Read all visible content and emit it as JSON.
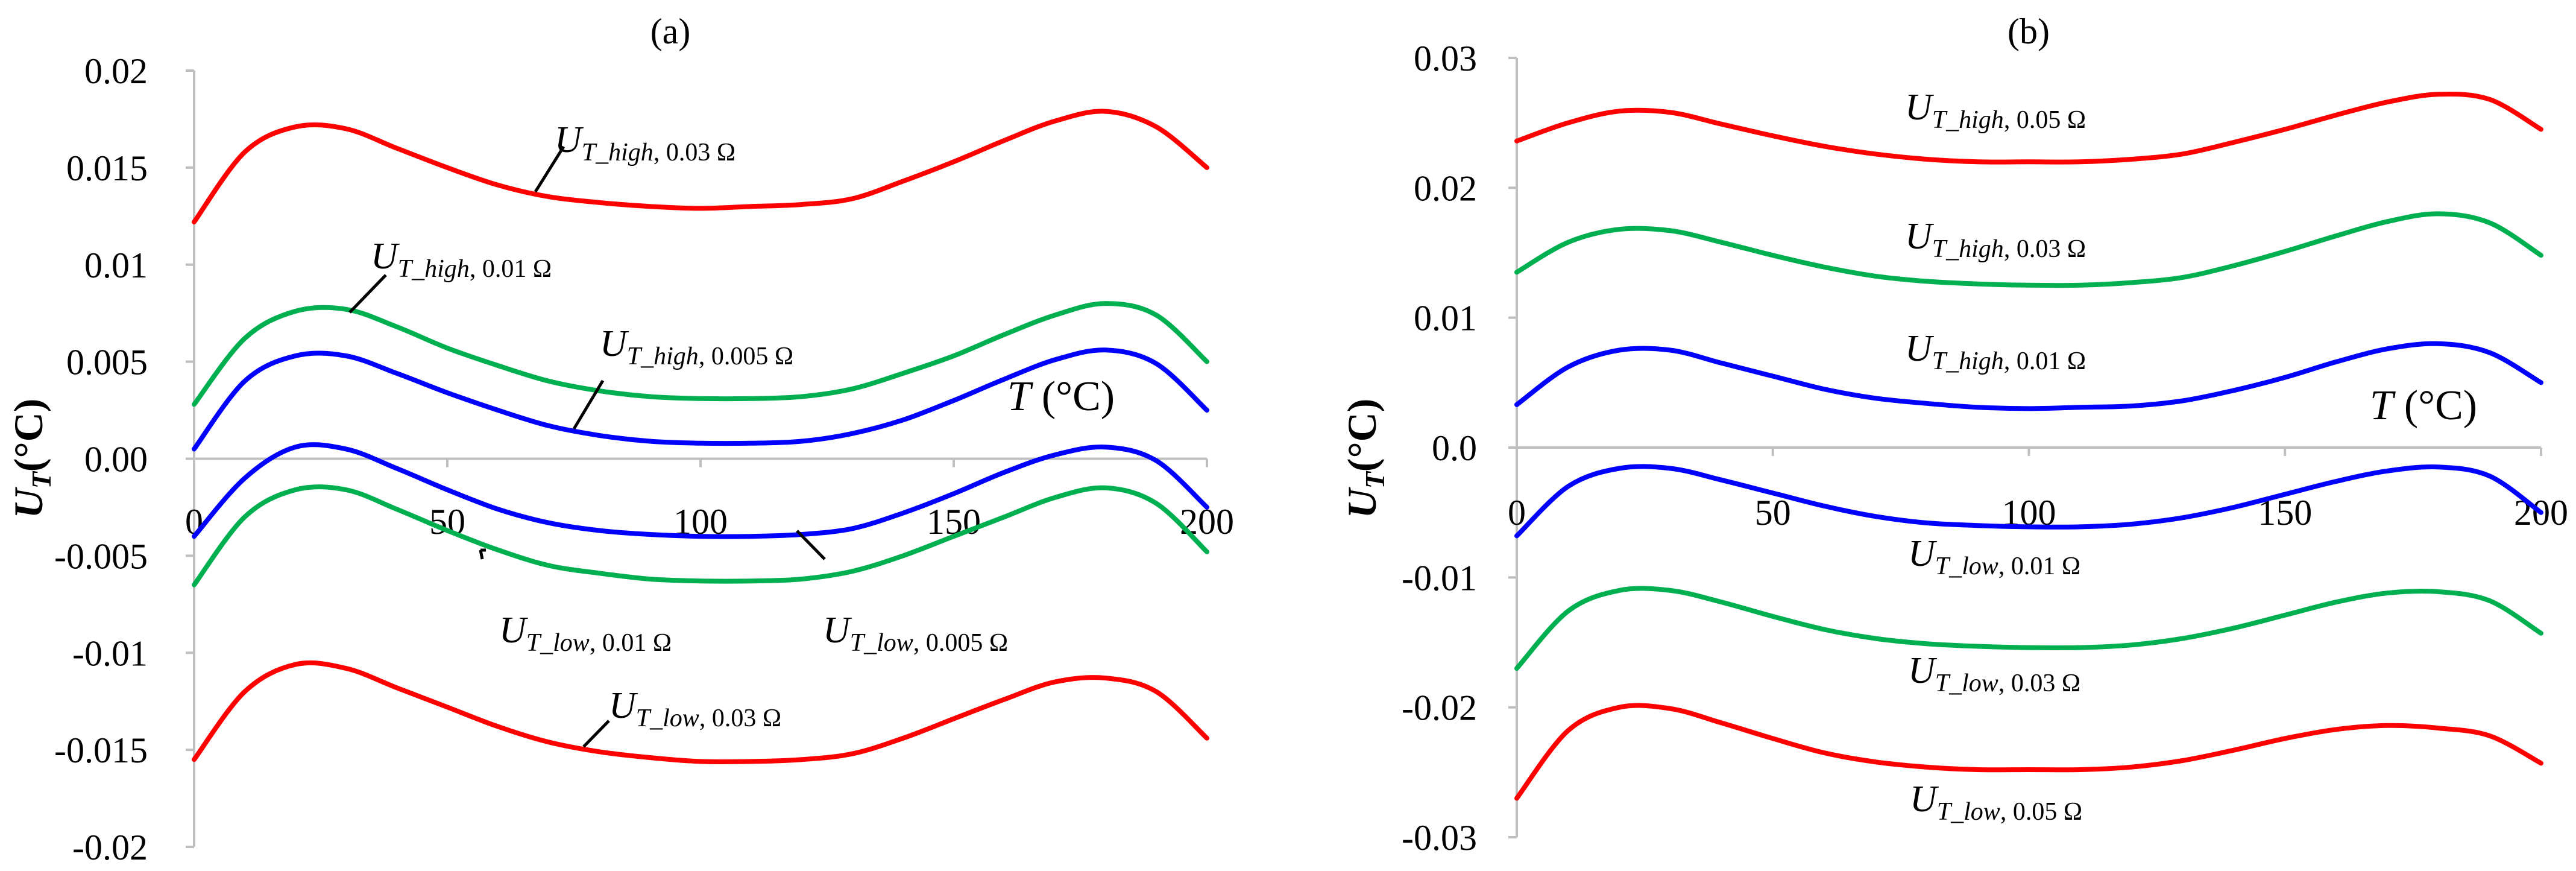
{
  "chart_data": [
    {
      "type": "line",
      "title": "(a)",
      "xlabel_var": "T",
      "xlabel_unit": "(°C)",
      "ylabel_var": "U",
      "ylabel_sub": "T",
      "ylabel_unit": "(°C)",
      "xlim": [
        0,
        200
      ],
      "ylim": [
        -0.02,
        0.02
      ],
      "xticks": [
        0,
        50,
        100,
        150,
        200
      ],
      "xtick_labels": [
        "0",
        "50",
        "100",
        "150",
        "200"
      ],
      "yticks": [
        0.02,
        0.015,
        0.01,
        0.005,
        0.0,
        -0.005,
        -0.01,
        -0.015,
        -0.02
      ],
      "ytick_labels": [
        "0.02",
        "0.015",
        "0.01",
        "0.005",
        "0.00",
        "-0.005",
        "-0.01",
        "-0.015",
        "-0.02"
      ],
      "x": [
        0,
        10,
        20,
        30,
        40,
        50,
        60,
        70,
        80,
        90,
        100,
        110,
        120,
        130,
        140,
        150,
        160,
        170,
        180,
        190,
        200
      ],
      "series": [
        {
          "name": "U_T_high, 0.03 Ω",
          "color": "#ff0000",
          "values": [
            0.0122,
            0.0158,
            0.0171,
            0.017,
            0.016,
            0.015,
            0.0141,
            0.0135,
            0.0132,
            0.013,
            0.0129,
            0.013,
            0.0131,
            0.0134,
            0.0143,
            0.0153,
            0.0164,
            0.0174,
            0.0179,
            0.0171,
            0.015
          ]
        },
        {
          "name": "U_T_high, 0.01 Ω",
          "color": "#00b050",
          "values": [
            0.0028,
            0.0062,
            0.0076,
            0.0077,
            0.0068,
            0.0057,
            0.0048,
            0.004,
            0.0035,
            0.0032,
            0.0031,
            0.0031,
            0.0032,
            0.0036,
            0.0044,
            0.0053,
            0.0064,
            0.0074,
            0.008,
            0.0074,
            0.005
          ]
        },
        {
          "name": "U_T_high, 0.005 Ω",
          "color": "#0000ff",
          "values": [
            0.0005,
            0.004,
            0.0053,
            0.0053,
            0.0044,
            0.0034,
            0.0025,
            0.0017,
            0.0012,
            0.0009,
            0.0008,
            0.0008,
            0.0009,
            0.0013,
            0.002,
            0.003,
            0.0041,
            0.0051,
            0.0056,
            0.0049,
            0.0025
          ]
        },
        {
          "name": "U_T_low, 0.005 Ω",
          "color": "#0000ff",
          "values": [
            -0.004,
            -0.001,
            0.0006,
            0.0005,
            -0.0005,
            -0.0016,
            -0.0026,
            -0.0033,
            -0.0037,
            -0.0039,
            -0.004,
            -0.004,
            -0.0039,
            -0.0036,
            -0.0028,
            -0.0018,
            -0.0007,
            0.0002,
            0.0006,
            -0.0001,
            -0.0025
          ]
        },
        {
          "name": "U_T_low, 0.01 Ω",
          "color": "#00b050",
          "values": [
            -0.0065,
            -0.003,
            -0.0016,
            -0.0016,
            -0.0026,
            -0.0037,
            -0.0047,
            -0.0055,
            -0.0059,
            -0.0062,
            -0.0063,
            -0.0063,
            -0.0062,
            -0.0058,
            -0.005,
            -0.004,
            -0.003,
            -0.002,
            -0.0015,
            -0.0023,
            -0.0048
          ]
        },
        {
          "name": "U_T_low, 0.03 Ω",
          "color": "#ff0000",
          "values": [
            -0.0155,
            -0.012,
            -0.0106,
            -0.0108,
            -0.0118,
            -0.0128,
            -0.0138,
            -0.0146,
            -0.0151,
            -0.0154,
            -0.0156,
            -0.0156,
            -0.0155,
            -0.0152,
            -0.0144,
            -0.0134,
            -0.0124,
            -0.0115,
            -0.0113,
            -0.012,
            -0.0144
          ]
        }
      ],
      "annotations": [
        {
          "main": "U",
          "sub_var": "T_high",
          "sub_val": ", 0.03 Ω"
        },
        {
          "main": "U",
          "sub_var": "T_high",
          "sub_val": ", 0.01 Ω"
        },
        {
          "main": "U",
          "sub_var": "T_high",
          "sub_val": ", 0.005 Ω"
        },
        {
          "main": "U",
          "sub_var": "T_low",
          "sub_val": ", 0.01 Ω"
        },
        {
          "main": "U",
          "sub_var": "T_low",
          "sub_val": ", 0.005 Ω"
        },
        {
          "main": "U",
          "sub_var": "T_low",
          "sub_val": ", 0.03 Ω"
        }
      ]
    },
    {
      "type": "line",
      "title": "(b)",
      "xlabel_var": "T",
      "xlabel_unit": "(°C)",
      "ylabel_var": "U",
      "ylabel_sub": "T",
      "ylabel_unit": "(°C)",
      "xlim": [
        0,
        200
      ],
      "ylim": [
        -0.03,
        0.03
      ],
      "xticks": [
        0,
        50,
        100,
        150,
        200
      ],
      "xtick_labels": [
        "0",
        "50",
        "100",
        "150",
        "200"
      ],
      "yticks": [
        0.03,
        0.02,
        0.01,
        0.0,
        -0.01,
        -0.02,
        -0.03
      ],
      "ytick_labels": [
        "0.03",
        "0.02",
        "0.01",
        "0.0",
        "-0.01",
        "-0.02",
        "-0.03"
      ],
      "x": [
        0,
        10,
        20,
        30,
        40,
        50,
        60,
        70,
        80,
        90,
        100,
        110,
        120,
        130,
        140,
        150,
        160,
        170,
        180,
        190,
        200
      ],
      "series": [
        {
          "name": "U_T_high, 0.05 Ω",
          "color": "#ff0000",
          "values": [
            0.0236,
            0.025,
            0.0259,
            0.0258,
            0.0249,
            0.024,
            0.0232,
            0.0226,
            0.0222,
            0.022,
            0.022,
            0.022,
            0.0222,
            0.0226,
            0.0235,
            0.0245,
            0.0256,
            0.0266,
            0.0272,
            0.0268,
            0.0245
          ]
        },
        {
          "name": "U_T_high, 0.03 Ω",
          "color": "#00b050",
          "values": [
            0.0135,
            0.0158,
            0.0168,
            0.0167,
            0.0158,
            0.0148,
            0.0139,
            0.0132,
            0.0128,
            0.0126,
            0.0125,
            0.0125,
            0.0127,
            0.0131,
            0.014,
            0.0151,
            0.0163,
            0.0174,
            0.018,
            0.0173,
            0.0148
          ]
        },
        {
          "name": "U_T_high, 0.01 Ω",
          "color": "#0000ff",
          "values": [
            0.0033,
            0.0062,
            0.0075,
            0.0075,
            0.0065,
            0.0055,
            0.0045,
            0.0038,
            0.0034,
            0.0031,
            0.003,
            0.0031,
            0.0032,
            0.0036,
            0.0044,
            0.0054,
            0.0066,
            0.0076,
            0.008,
            0.0073,
            0.005
          ]
        },
        {
          "name": "U_T_low, 0.01 Ω",
          "color": "#0000ff",
          "values": [
            -0.0068,
            -0.003,
            -0.0016,
            -0.0016,
            -0.0025,
            -0.0035,
            -0.0045,
            -0.0053,
            -0.0058,
            -0.006,
            -0.0061,
            -0.0061,
            -0.0059,
            -0.0054,
            -0.0046,
            -0.0036,
            -0.0026,
            -0.0018,
            -0.0015,
            -0.0022,
            -0.005
          ]
        },
        {
          "name": "U_T_low, 0.03 Ω",
          "color": "#00b050",
          "values": [
            -0.017,
            -0.0126,
            -0.011,
            -0.011,
            -0.0119,
            -0.013,
            -0.014,
            -0.0147,
            -0.0151,
            -0.0153,
            -0.0154,
            -0.0154,
            -0.0152,
            -0.0147,
            -0.0139,
            -0.0129,
            -0.0119,
            -0.0112,
            -0.0111,
            -0.0118,
            -0.0143
          ]
        },
        {
          "name": "U_T_low, 0.05 Ω",
          "color": "#ff0000",
          "values": [
            -0.027,
            -0.0218,
            -0.02,
            -0.0201,
            -0.0212,
            -0.0224,
            -0.0235,
            -0.0242,
            -0.0246,
            -0.0248,
            -0.0248,
            -0.0248,
            -0.0246,
            -0.0241,
            -0.0233,
            -0.0224,
            -0.0217,
            -0.0214,
            -0.0216,
            -0.0222,
            -0.0243
          ]
        }
      ],
      "annotations": [
        {
          "main": "U",
          "sub_var": "T_high",
          "sub_val": ", 0.05 Ω"
        },
        {
          "main": "U",
          "sub_var": "T_high",
          "sub_val": ", 0.03 Ω"
        },
        {
          "main": "U",
          "sub_var": "T_high",
          "sub_val": ", 0.01 Ω"
        },
        {
          "main": "U",
          "sub_var": "T_low",
          "sub_val": ", 0.01 Ω"
        },
        {
          "main": "U",
          "sub_var": "T_low",
          "sub_val": ", 0.03 Ω"
        },
        {
          "main": "U",
          "sub_var": "T_low",
          "sub_val": ", 0.05 Ω"
        }
      ]
    }
  ]
}
